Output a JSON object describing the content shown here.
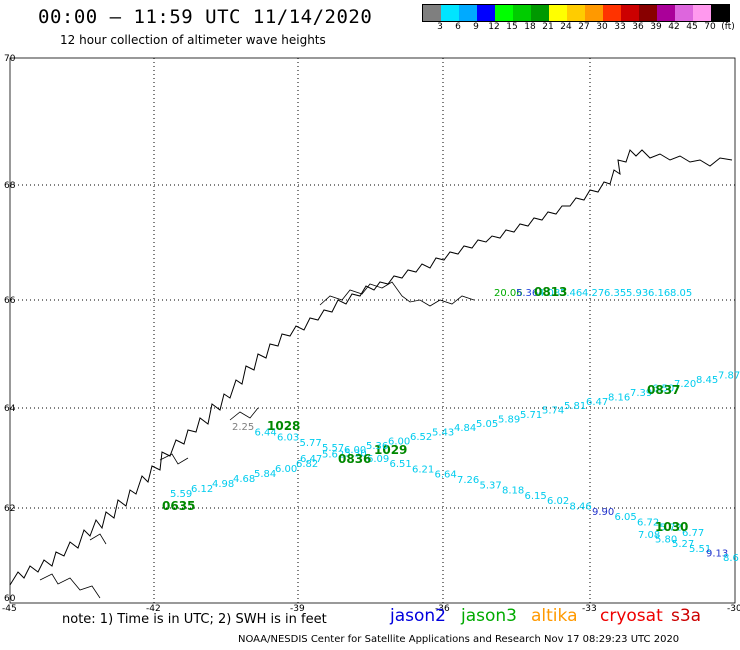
{
  "header": {
    "title": "00:00 – 11:59 UTC 11/14/2020",
    "subtitle": "12 hour collection of altimeter wave heights"
  },
  "colorbar": {
    "colors": [
      "#7f7f7f",
      "#00e5ff",
      "#00aaff",
      "#0000ff",
      "#00ff00",
      "#00cc00",
      "#009900",
      "#ffff00",
      "#ffcc00",
      "#ff9900",
      "#ff3300",
      "#cc0000",
      "#880000",
      "#aa0099",
      "#dd66dd",
      "#ff99ee",
      "#000000"
    ],
    "labels": [
      "3",
      "6",
      "9",
      "12",
      "15",
      "18",
      "21",
      "24",
      "27",
      "30",
      "33",
      "36",
      "39",
      "42",
      "45",
      "70",
      "(ft)"
    ]
  },
  "axes": {
    "lat_labels": [
      "70",
      "68",
      "66",
      "64",
      "62",
      "60"
    ],
    "lon_labels": [
      "-45",
      "-42",
      "-39",
      "-36",
      "-33",
      "-30"
    ]
  },
  "tracks": [
    {
      "satellite": "jason3",
      "time_label": "0813",
      "time_color": "#008800",
      "points": [
        {
          "v": "20.06",
          "c": "#00aa00"
        },
        {
          "v": "5.36",
          "c": "#2244dd"
        },
        {
          "v": "4.08",
          "c": "#00ccee"
        },
        {
          "v": "5.46",
          "c": "#00ccee"
        },
        {
          "v": "4.27",
          "c": "#00ccee"
        },
        {
          "v": "6.35",
          "c": "#00ccee"
        },
        {
          "v": "5.93",
          "c": "#00ccee"
        },
        {
          "v": "6.16",
          "c": "#00ccee"
        },
        {
          "v": "8.05",
          "c": "#00ccee"
        }
      ]
    },
    {
      "satellite": "jason3",
      "time_label": "1028",
      "time_color": "#008800",
      "points": [
        {
          "v": "2.25",
          "c": "#808080"
        },
        {
          "v": "6.44",
          "c": "#00ccee"
        },
        {
          "v": "6.03",
          "c": "#00ccee"
        },
        {
          "v": "5.77",
          "c": "#00ccee"
        },
        {
          "v": "5.57",
          "c": "#00ccee"
        },
        {
          "v": "5.30",
          "c": "#00ccee"
        },
        {
          "v": "6.09",
          "c": "#00ccee"
        },
        {
          "v": "6.51",
          "c": "#00ccee"
        },
        {
          "v": "6.21",
          "c": "#00ccee"
        },
        {
          "v": "6.64",
          "c": "#00ccee"
        },
        {
          "v": "7.26",
          "c": "#00ccee"
        },
        {
          "v": "5.37",
          "c": "#00ccee"
        },
        {
          "v": "8.18",
          "c": "#00ccee"
        },
        {
          "v": "6.15",
          "c": "#00ccee"
        },
        {
          "v": "6.02",
          "c": "#00ccee"
        },
        {
          "v": "8.46",
          "c": "#00ccee"
        },
        {
          "v": "9.90",
          "c": "#2233cc"
        },
        {
          "v": "6.05",
          "c": "#00ccee"
        },
        {
          "v": "6.72",
          "c": "#00ccee"
        },
        {
          "v": "5.72",
          "c": "#00ccee"
        },
        {
          "v": "6.77",
          "c": "#00ccee"
        }
      ]
    },
    {
      "satellite": "jason3",
      "time_label": "1029",
      "time_color": "#008800",
      "points": []
    },
    {
      "satellite": "jason3",
      "time_label": "0836",
      "time_color": "#008800",
      "points": [
        {
          "v": "6.47",
          "c": "#00ccee"
        },
        {
          "v": "5.62",
          "c": "#00ccee"
        },
        {
          "v": "6.00",
          "c": "#00ccee"
        },
        {
          "v": "5.36",
          "c": "#00ccee"
        },
        {
          "v": "6.00",
          "c": "#00ccee"
        },
        {
          "v": "6.52",
          "c": "#00ccee"
        },
        {
          "v": "5.43",
          "c": "#00ccee"
        },
        {
          "v": "4.84",
          "c": "#00ccee"
        },
        {
          "v": "5.05",
          "c": "#00ccee"
        },
        {
          "v": "5.89",
          "c": "#00ccee"
        },
        {
          "v": "5.71",
          "c": "#00ccee"
        },
        {
          "v": "5.74",
          "c": "#00ccee"
        },
        {
          "v": "5.81",
          "c": "#00ccee"
        },
        {
          "v": "6.47",
          "c": "#00ccee"
        },
        {
          "v": "8.16",
          "c": "#00ccee"
        },
        {
          "v": "7.39",
          "c": "#00ccee"
        },
        {
          "v": "6.50",
          "c": "#00ccee"
        },
        {
          "v": "7.20",
          "c": "#00ccee"
        },
        {
          "v": "8.45",
          "c": "#00ccee"
        },
        {
          "v": "7.87",
          "c": "#00ccee"
        }
      ]
    },
    {
      "satellite": "jason3",
      "time_label": "0837",
      "time_color": "#008800",
      "points": []
    },
    {
      "satellite": "jason3",
      "time_label": "0635",
      "time_color": "#008800",
      "points": [
        {
          "v": "5.59",
          "c": "#00ccee"
        },
        {
          "v": "6.12",
          "c": "#00ccee"
        },
        {
          "v": "4.98",
          "c": "#00ccee"
        },
        {
          "v": "4.68",
          "c": "#00ccee"
        },
        {
          "v": "5.84",
          "c": "#00ccee"
        },
        {
          "v": "6.00",
          "c": "#00ccee"
        },
        {
          "v": "6.82",
          "c": "#00ccee"
        }
      ]
    },
    {
      "satellite": "jason3",
      "time_label": "1030",
      "time_color": "#008800",
      "points": [
        {
          "v": "7.08",
          "c": "#00ccee"
        },
        {
          "v": "5.80",
          "c": "#00ccee"
        },
        {
          "v": "5.27",
          "c": "#00ccee"
        },
        {
          "v": "5.51",
          "c": "#00ccee"
        },
        {
          "v": "9.13",
          "c": "#2233cc"
        },
        {
          "v": "8.6",
          "c": "#00ccee"
        }
      ]
    }
  ],
  "footer": {
    "note": "note:  1) Time is in UTC;  2) SWH is in feet",
    "legend": [
      {
        "name": "jason2",
        "color": "#0000dd"
      },
      {
        "name": "jason3",
        "color": "#00aa00"
      },
      {
        "name": "altika",
        "color": "#ff9900"
      },
      {
        "name": "cryosat",
        "color": "#ee0000"
      },
      {
        "name": "s3a",
        "color": "#cc0000"
      }
    ],
    "credit": "NOAA/NESDIS Center for Satellite Applications and Research     Nov 17 08:29:23 UTC 2020"
  }
}
